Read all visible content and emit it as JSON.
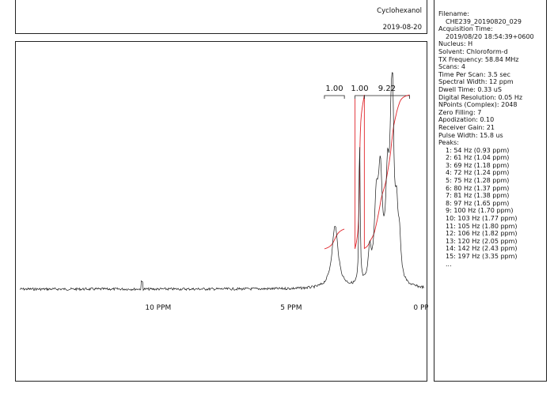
{
  "header": {
    "sample_name": "Cyclohexanol",
    "date": "2019-08-20"
  },
  "params": {
    "filename_label": "Filename:",
    "filename": "CHE239_20190820_029",
    "acq_label": "Acquisition Time:",
    "acq_time": "2019/08/20 18:54:39+0600",
    "lines": [
      "Nucleus: H",
      "Solvent: Chloroform-d",
      "TX Frequency: 58.84 MHz",
      "Scans: 4",
      "Time Per Scan: 3.5 sec",
      "Spectral Width: 12 ppm",
      "Dwell Time: 0.33 uS",
      "Digital Resolution: 0.05 Hz",
      "NPoints (Complex): 2048",
      "Zero Filling: 7",
      "Apodization: 0.10",
      "Receiver Gain: 21",
      "Pulse Width: 15.8 us"
    ],
    "peaks_label": "Peaks:",
    "peaks": [
      "1: 54 Hz (0.93 ppm)",
      "2: 61 Hz (1.04 ppm)",
      "3: 69 Hz (1.18 ppm)",
      "4: 72 Hz (1.24 ppm)",
      "5: 75 Hz (1.28 ppm)",
      "6: 80 Hz (1.37 ppm)",
      "7: 81 Hz (1.38 ppm)",
      "8: 97 Hz (1.65 ppm)",
      "9: 100 Hz (1.70 ppm)",
      "10: 103 Hz (1.77 ppm)",
      "11: 105 Hz (1.80 ppm)",
      "12: 106 Hz (1.82 ppm)",
      "13: 120 Hz (2.05 ppm)",
      "14: 142 Hz (2.43 ppm)",
      "15: 197 Hz (3.35 ppm)"
    ],
    "more": "..."
  },
  "chart_data": {
    "type": "line",
    "xlim": [
      15.2,
      0
    ],
    "x_reversed": true,
    "ticks": [
      {
        "value": 10,
        "label": "10 PPM"
      },
      {
        "value": 5,
        "label": "5 PPM"
      },
      {
        "value": 0,
        "label": "0 PPM"
      }
    ],
    "peaks_shape": [
      {
        "center": 3.35,
        "height": 0.31,
        "width": 0.14
      },
      {
        "center": 2.43,
        "height": 0.75,
        "width": 0.025
      },
      {
        "center": 2.05,
        "height": 0.16,
        "width": 0.06
      },
      {
        "center": 1.8,
        "height": 0.36,
        "width": 0.09
      },
      {
        "center": 1.65,
        "height": 0.5,
        "width": 0.09
      },
      {
        "center": 1.38,
        "height": 0.45,
        "width": 0.08
      },
      {
        "center": 1.24,
        "height": 0.6,
        "width": 0.07
      },
      {
        "center": 1.18,
        "height": 0.55,
        "width": 0.05
      },
      {
        "center": 1.04,
        "height": 0.3,
        "width": 0.07
      },
      {
        "center": 0.93,
        "height": 0.18,
        "width": 0.06
      }
    ],
    "spike_ppm": 10.6,
    "integrals": [
      {
        "label": "1.00",
        "from": 3.75,
        "to": 3.0
      },
      {
        "label": "1.00",
        "from": 2.6,
        "to": 2.25
      },
      {
        "label": "9.22",
        "from": 2.25,
        "to": 0.55
      }
    ],
    "integral_color": "#e0262c"
  }
}
